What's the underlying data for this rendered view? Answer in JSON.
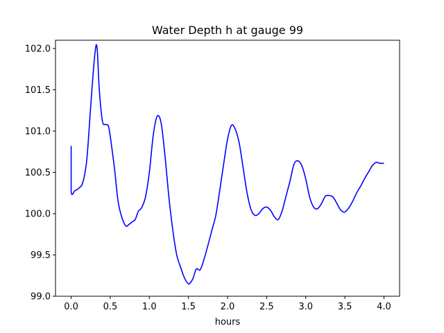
{
  "chart_data": {
    "type": "line",
    "title": "Water Depth h at gauge 99",
    "xlabel": "hours",
    "ylabel": "",
    "xlim": [
      -0.2,
      4.2
    ],
    "ylim": [
      99.0,
      102.1
    ],
    "grid": false,
    "x_ticks": [
      0.0,
      0.5,
      1.0,
      1.5,
      2.0,
      2.5,
      3.0,
      3.5,
      4.0
    ],
    "x_tick_labels": [
      "0.0",
      "0.5",
      "1.0",
      "1.5",
      "2.0",
      "2.5",
      "3.0",
      "3.5",
      "4.0"
    ],
    "y_ticks": [
      99.0,
      99.5,
      100.0,
      100.5,
      101.0,
      101.5,
      102.0
    ],
    "y_tick_labels": [
      "99.0",
      "99.5",
      "100.0",
      "100.5",
      "101.0",
      "101.5",
      "102.0"
    ],
    "series": [
      {
        "color": "#0000ff",
        "x": [
          0.0,
          0.0,
          0.05,
          0.1,
          0.15,
          0.2,
          0.25,
          0.3,
          0.33,
          0.36,
          0.4,
          0.44,
          0.48,
          0.52,
          0.56,
          0.6,
          0.65,
          0.7,
          0.74,
          0.78,
          0.82,
          0.86,
          0.9,
          0.95,
          1.0,
          1.05,
          1.1,
          1.15,
          1.2,
          1.25,
          1.3,
          1.35,
          1.4,
          1.45,
          1.5,
          1.53,
          1.56,
          1.6,
          1.65,
          1.7,
          1.75,
          1.8,
          1.85,
          1.9,
          1.95,
          2.0,
          2.05,
          2.1,
          2.15,
          2.2,
          2.25,
          2.3,
          2.35,
          2.4,
          2.45,
          2.5,
          2.55,
          2.6,
          2.65,
          2.7,
          2.75,
          2.8,
          2.85,
          2.9,
          2.95,
          3.0,
          3.05,
          3.1,
          3.15,
          3.2,
          3.25,
          3.3,
          3.35,
          3.4,
          3.45,
          3.5,
          3.55,
          3.6,
          3.65,
          3.7,
          3.75,
          3.8,
          3.85,
          3.9,
          3.95,
          4.0
        ],
        "y": [
          100.82,
          100.27,
          100.28,
          100.31,
          100.38,
          100.65,
          101.3,
          101.9,
          102.02,
          101.5,
          101.12,
          101.08,
          101.05,
          100.8,
          100.5,
          100.15,
          99.95,
          99.85,
          99.87,
          99.9,
          99.93,
          100.03,
          100.07,
          100.2,
          100.5,
          100.95,
          101.18,
          101.1,
          100.7,
          100.2,
          99.8,
          99.5,
          99.35,
          99.22,
          99.15,
          99.17,
          99.22,
          99.33,
          99.32,
          99.45,
          99.62,
          99.8,
          99.98,
          100.28,
          100.6,
          100.9,
          101.07,
          101.02,
          100.85,
          100.55,
          100.25,
          100.05,
          99.98,
          100.0,
          100.06,
          100.08,
          100.04,
          99.96,
          99.93,
          100.04,
          100.22,
          100.4,
          100.6,
          100.64,
          100.58,
          100.42,
          100.2,
          100.08,
          100.06,
          100.12,
          100.21,
          100.22,
          100.2,
          100.12,
          100.04,
          100.02,
          100.07,
          100.15,
          100.25,
          100.33,
          100.42,
          100.5,
          100.58,
          100.62,
          100.61,
          100.61
        ]
      }
    ]
  }
}
